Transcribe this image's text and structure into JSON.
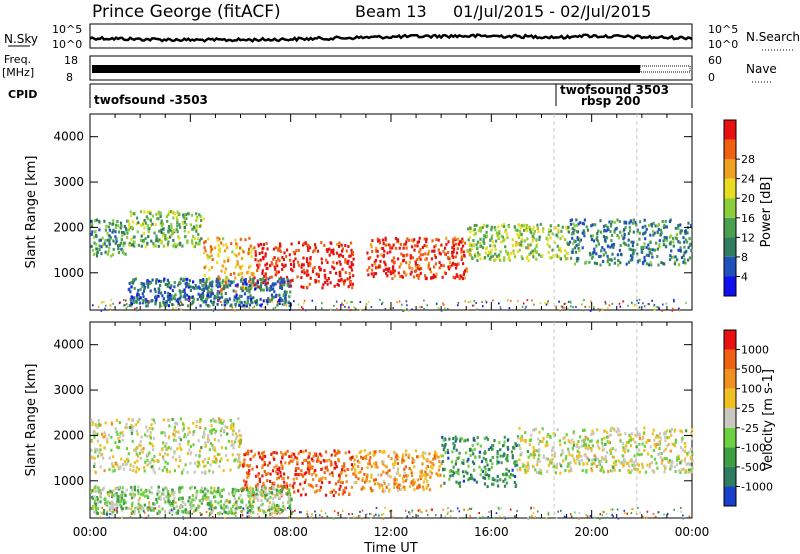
{
  "header": {
    "station": "Prince George (fitACF)",
    "beam": "Beam 13",
    "dates": "01/Jul/2015 - 02/Jul/2015"
  },
  "top_panels": {
    "nsky_label": "N.Sky",
    "nsearch_label": "N.Search",
    "noise_ticks": [
      "10^5",
      "10^0"
    ],
    "freq_label": "Freq.",
    "freq_unit": "[MHz]",
    "freq_ticks": [
      "18",
      "8"
    ],
    "nave_label": "Nave",
    "nave_ticks": [
      "60",
      "0"
    ],
    "cpid_label": "CPID",
    "cpid_entries": [
      {
        "text": "twofsound -3503"
      },
      {
        "text": "twofsound 3503"
      },
      {
        "text": "rbsp 200"
      }
    ]
  },
  "chart_data": [
    {
      "type": "heatmap",
      "title": "",
      "ylabel": "Slant Range [km]",
      "xlabel": "Time UT",
      "x_ticks": [
        "00:00",
        "04:00",
        "08:00",
        "12:00",
        "16:00",
        "20:00",
        "00:00"
      ],
      "xlim_hours": [
        0,
        24
      ],
      "y_ticks": [
        1000,
        2000,
        3000,
        4000
      ],
      "ylim": [
        180,
        4500
      ],
      "colorbar": {
        "label": "Power [dB]",
        "ticks": [
          "4",
          "8",
          "12",
          "16",
          "20",
          "24",
          "28"
        ],
        "colors": [
          "#1010ee",
          "#2050c0",
          "#2e7d60",
          "#4aa050",
          "#8ccd3c",
          "#e8dc20",
          "#f0a020",
          "#f06010",
          "#e81010"
        ]
      },
      "bands": [
        {
          "t0": 0.0,
          "t1": 1.5,
          "r0": 1400,
          "r1": 2200,
          "level": 0.35
        },
        {
          "t0": 1.5,
          "t1": 4.5,
          "r0": 1600,
          "r1": 2400,
          "level": 0.45
        },
        {
          "t0": 4.5,
          "t1": 6.5,
          "r0": 600,
          "r1": 1800,
          "level": 0.7
        },
        {
          "t0": 6.5,
          "t1": 10.5,
          "r0": 700,
          "r1": 1700,
          "level": 0.95
        },
        {
          "t0": 11.0,
          "t1": 15.0,
          "r0": 900,
          "r1": 1800,
          "level": 0.9
        },
        {
          "t0": 15.0,
          "t1": 19.0,
          "r0": 1300,
          "r1": 2100,
          "level": 0.5
        },
        {
          "t0": 19.0,
          "t1": 24.0,
          "r0": 1200,
          "r1": 2200,
          "level": 0.3
        },
        {
          "t0": 1.5,
          "t1": 8.0,
          "r0": 300,
          "r1": 900,
          "level": 0.25
        }
      ]
    },
    {
      "type": "heatmap",
      "title": "",
      "ylabel": "Slant Range [km]",
      "xlabel": "Time UT",
      "x_ticks": [
        "00:00",
        "04:00",
        "08:00",
        "12:00",
        "16:00",
        "20:00",
        "00:00"
      ],
      "xlim_hours": [
        0,
        24
      ],
      "y_ticks": [
        1000,
        2000,
        3000,
        4000
      ],
      "ylim": [
        180,
        4500
      ],
      "colorbar": {
        "label": "Velocity [m s-1]",
        "ticks": [
          "1000",
          "500",
          "100",
          "25",
          "-25",
          "-100",
          "-500",
          "-1000"
        ],
        "colors": [
          "#1840c8",
          "#2e7d60",
          "#3ca040",
          "#6cd040",
          "#c8c8c0",
          "#f0c020",
          "#f09020",
          "#f06010",
          "#e81010"
        ]
      },
      "bands": [
        {
          "t0": 0.0,
          "t1": 6.0,
          "r0": 1200,
          "r1": 2400,
          "vel": 0.5
        },
        {
          "t0": 6.0,
          "t1": 10.5,
          "r0": 700,
          "r1": 1700,
          "vel": 0.85
        },
        {
          "t0": 10.5,
          "t1": 14.0,
          "r0": 800,
          "r1": 1700,
          "vel": 0.7
        },
        {
          "t0": 14.0,
          "t1": 17.0,
          "r0": 900,
          "r1": 2000,
          "vel": 0.25
        },
        {
          "t0": 17.0,
          "t1": 24.0,
          "r0": 1200,
          "r1": 2200,
          "vel": 0.5
        },
        {
          "t0": 0.0,
          "t1": 8.0,
          "r0": 300,
          "r1": 900,
          "vel": 0.4
        }
      ]
    }
  ],
  "xaxis_title": "Time UT"
}
